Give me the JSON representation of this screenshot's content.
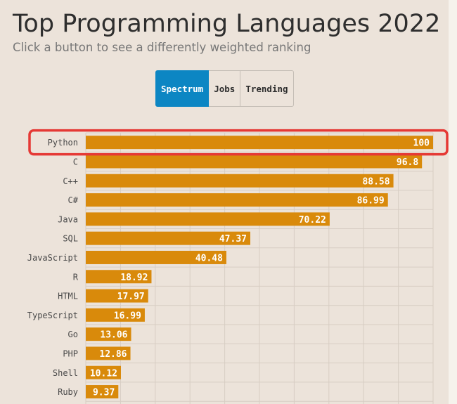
{
  "header": {
    "title": "Top Programming Languages 2022",
    "subtitle": "Click a button to see a differently weighted ranking"
  },
  "buttons": [
    {
      "label": "Spectrum",
      "active": true
    },
    {
      "label": "Jobs",
      "active": false
    },
    {
      "label": "Trending",
      "active": false
    }
  ],
  "colors": {
    "background": "#ece3da",
    "bar": "#d98a0b",
    "accent": "#0c86c3",
    "highlight": "#e53935",
    "grid": "#d7cdc3"
  },
  "highlighted_category": "Python",
  "chart_data": {
    "type": "bar",
    "orientation": "horizontal",
    "title": "Top Programming Languages 2022",
    "subtitle": "Click a button to see a differently weighted ranking",
    "categories": [
      "Python",
      "C",
      "C++",
      "C#",
      "Java",
      "SQL",
      "JavaScript",
      "R",
      "HTML",
      "TypeScript",
      "Go",
      "PHP",
      "Shell",
      "Ruby"
    ],
    "values": [
      100,
      96.8,
      88.58,
      86.99,
      70.22,
      47.37,
      40.48,
      18.92,
      17.97,
      16.99,
      13.06,
      12.86,
      10.12,
      9.37
    ],
    "value_labels": [
      "100",
      "96.8",
      "88.58",
      "86.99",
      "70.22",
      "47.37",
      "40.48",
      "18.92",
      "17.97",
      "16.99",
      "13.06",
      "12.86",
      "10.12",
      "9.37"
    ],
    "xlim": [
      0,
      100
    ],
    "xlabel": "",
    "ylabel": "",
    "grid": true,
    "data_labels": true
  }
}
